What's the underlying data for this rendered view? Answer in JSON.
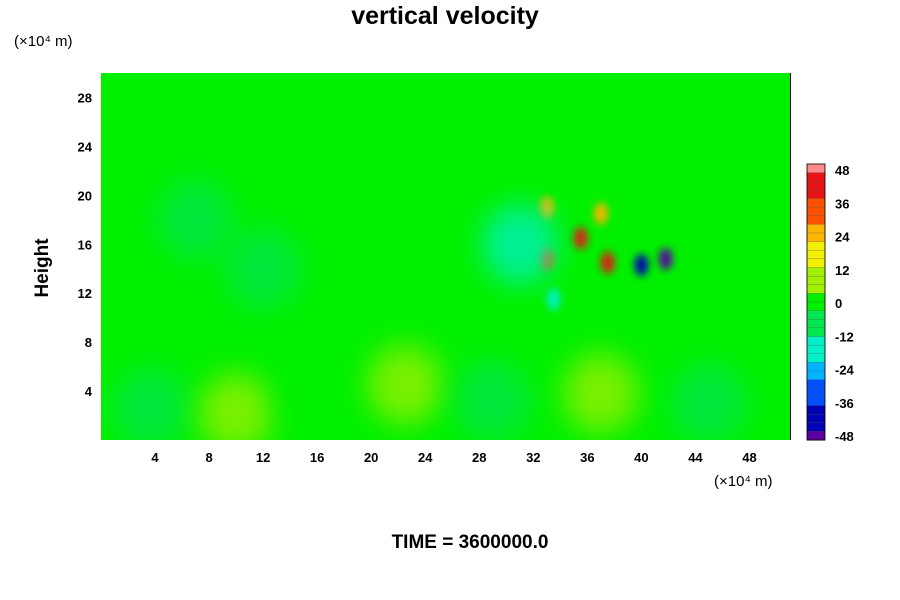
{
  "chart_data": {
    "type": "heatmap",
    "title": "vertical velocity",
    "ylabel": "Height",
    "xlabel": "",
    "x_unit": "(×10⁴ m)",
    "y_unit": "(×10⁴ m)",
    "xlim": [
      0,
      51
    ],
    "ylim": [
      0,
      30
    ],
    "x_ticks": [
      "4",
      "8",
      "12",
      "16",
      "20",
      "24",
      "28",
      "32",
      "36",
      "40",
      "44",
      "48"
    ],
    "y_ticks": [
      "4",
      "8",
      "12",
      "16",
      "20",
      "24",
      "28"
    ],
    "colorbar": {
      "range": [
        -48,
        48
      ],
      "ticks": [
        "48",
        "36",
        "24",
        "12",
        "0",
        "-12",
        "-24",
        "-36",
        "-48"
      ],
      "colors": [
        "#5a00a0",
        "#0000b4",
        "#0050ff",
        "#00b4ff",
        "#00f0c8",
        "#00e650",
        "#00f000",
        "#a0f000",
        "#f0f000",
        "#ffb400",
        "#ff5000",
        "#e61414",
        "#ff8c8c"
      ]
    },
    "features": [
      {
        "x": 3.7,
        "y": 2.6,
        "value": -9
      },
      {
        "x": 10.0,
        "y": 2.2,
        "value": 4
      },
      {
        "x": 16.0,
        "y": 3.5,
        "value": 3
      },
      {
        "x": 22.5,
        "y": 4.5,
        "value": 10
      },
      {
        "x": 29.0,
        "y": 3.2,
        "value": -8
      },
      {
        "x": 37.0,
        "y": 3.8,
        "value": 8
      },
      {
        "x": 45.0,
        "y": 3.0,
        "value": -7
      },
      {
        "x": 33.0,
        "y": 19.0,
        "value": 26
      },
      {
        "x": 35.5,
        "y": 16.5,
        "value": 38
      },
      {
        "x": 37.5,
        "y": 14.5,
        "value": 40
      },
      {
        "x": 33.0,
        "y": 14.8,
        "value": 30
      },
      {
        "x": 37.0,
        "y": 18.5,
        "value": 22
      },
      {
        "x": 40.0,
        "y": 14.3,
        "value": -40
      },
      {
        "x": 41.8,
        "y": 14.8,
        "value": -46
      },
      {
        "x": 33.5,
        "y": 11.5,
        "value": -20
      },
      {
        "x": 31.0,
        "y": 16.0,
        "value": -14
      },
      {
        "x": 12.0,
        "y": 14.0,
        "value": -6
      },
      {
        "x": 7.0,
        "y": 18.0,
        "value": -5
      }
    ]
  },
  "footer": {
    "time_label": "TIME = ",
    "time_value": "3600000.0"
  }
}
